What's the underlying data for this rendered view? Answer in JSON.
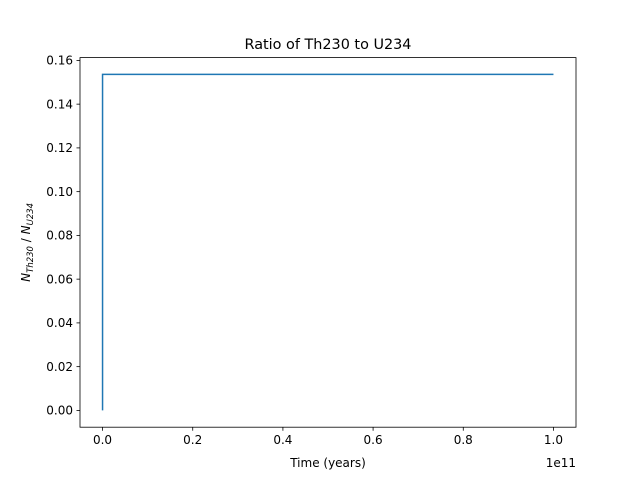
{
  "chart_data": {
    "type": "line",
    "title": "Ratio of Th230 to U234",
    "xlabel": "Time (years)",
    "ylabel": {
      "n1": "N",
      "sub1": "Th230",
      "sep": " / ",
      "n2": "N",
      "sub2": "U234"
    },
    "x_offset_label": "1e11",
    "x_scale": 100000000000,
    "xlim": [
      -0.05,
      1.05
    ],
    "ylim": [
      -0.00768,
      0.16128
    ],
    "xticks": [
      {
        "value": 0.0,
        "label": "0.0"
      },
      {
        "value": 0.2,
        "label": "0.2"
      },
      {
        "value": 0.4,
        "label": "0.4"
      },
      {
        "value": 0.6,
        "label": "0.6"
      },
      {
        "value": 0.8,
        "label": "0.8"
      },
      {
        "value": 1.0,
        "label": "1.0"
      }
    ],
    "yticks": [
      {
        "value": 0.0,
        "label": "0.00"
      },
      {
        "value": 0.02,
        "label": "0.02"
      },
      {
        "value": 0.04,
        "label": "0.04"
      },
      {
        "value": 0.06,
        "label": "0.06"
      },
      {
        "value": 0.08,
        "label": "0.08"
      },
      {
        "value": 0.1,
        "label": "0.10"
      },
      {
        "value": 0.12,
        "label": "0.12"
      },
      {
        "value": 0.14,
        "label": "0.14"
      },
      {
        "value": 0.16,
        "label": "0.16"
      }
    ],
    "grid": false,
    "series": [
      {
        "color": "#1f77b4",
        "x": [
          0.0,
          0.0,
          1.0
        ],
        "y": [
          0.0,
          0.1536,
          0.1536
        ]
      }
    ]
  }
}
